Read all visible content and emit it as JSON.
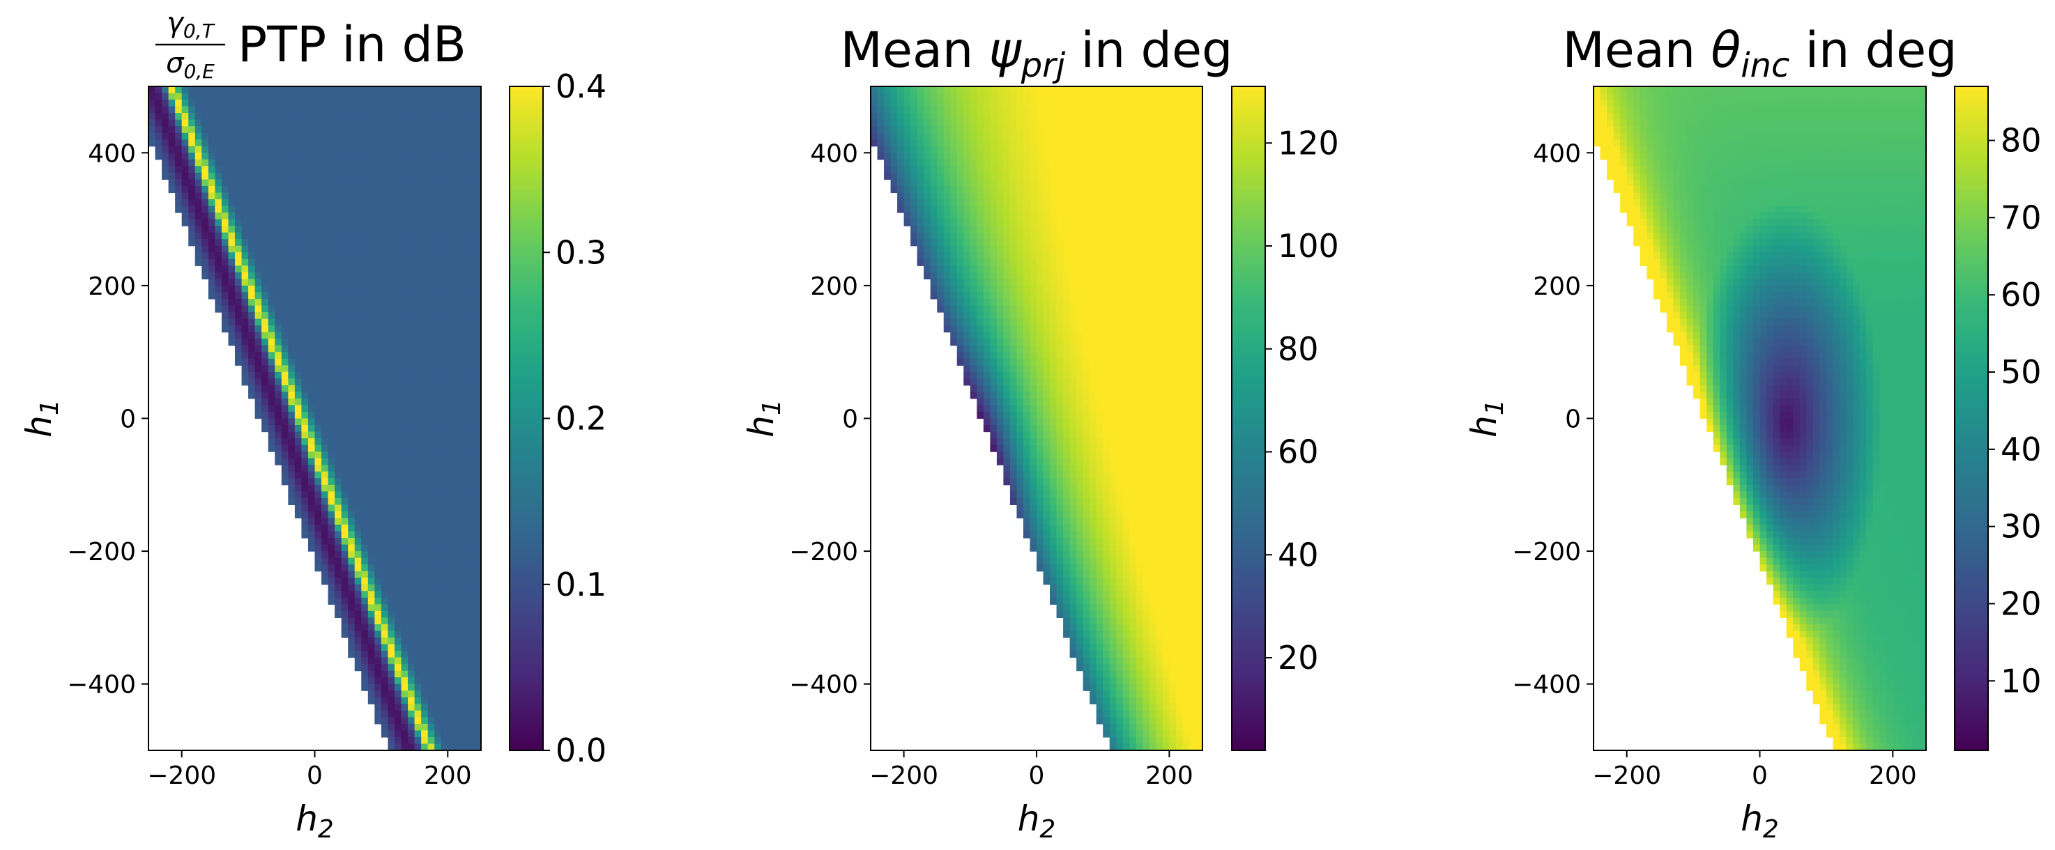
{
  "chart_data": [
    {
      "type": "heatmap",
      "title": {
        "fraction_numerator": "γ",
        "numerator_sub": "0,T",
        "fraction_denominator": "σ",
        "denominator_sub": "0,E",
        "text": "PTP in dB"
      },
      "xlabel": {
        "symbol": "h",
        "sub": "2"
      },
      "ylabel": {
        "symbol": "h",
        "sub": "1"
      },
      "xlim": [
        -250,
        250
      ],
      "ylim": [
        -500,
        500
      ],
      "xticks": [
        -200,
        0,
        200
      ],
      "xtick_labels": [
        "−200",
        "0",
        "200"
      ],
      "yticks": [
        -400,
        -200,
        0,
        200,
        400
      ],
      "ytick_labels": [
        "−400",
        "−200",
        "0",
        "200",
        "400"
      ],
      "colorbar": {
        "min": 0.0,
        "max": 0.4,
        "ticks": [
          0.0,
          0.1,
          0.2,
          0.3,
          0.4
        ],
        "tick_labels": [
          "0.0",
          "0.1",
          "0.2",
          "0.3",
          "0.4"
        ]
      },
      "colormap": "viridis",
      "grid": [
        50,
        100
      ],
      "description_values": {
        "background": 0.12,
        "dark_band": 0.02,
        "bright_band": 0.42
      }
    },
    {
      "type": "heatmap",
      "title": {
        "prefix": "Mean ",
        "symbol": "ψ",
        "sub": "prj",
        "suffix": " in deg"
      },
      "xlabel": {
        "symbol": "h",
        "sub": "2"
      },
      "ylabel": {
        "symbol": "h",
        "sub": "1"
      },
      "xlim": [
        -250,
        250
      ],
      "ylim": [
        -500,
        500
      ],
      "xticks": [
        -200,
        0,
        200
      ],
      "xtick_labels": [
        "−200",
        "0",
        "200"
      ],
      "yticks": [
        -400,
        -200,
        0,
        200,
        400
      ],
      "ytick_labels": [
        "−400",
        "−200",
        "0",
        "200",
        "400"
      ],
      "colorbar": {
        "min": 2,
        "max": 131,
        "ticks": [
          20,
          40,
          60,
          80,
          100,
          120
        ],
        "tick_labels": [
          "20",
          "40",
          "60",
          "80",
          "100",
          "120"
        ]
      },
      "colormap": "viridis",
      "grid": [
        50,
        100
      ]
    },
    {
      "type": "heatmap",
      "title": {
        "prefix": "Mean ",
        "symbol": "θ",
        "sub": "inc",
        "suffix": " in deg"
      },
      "xlabel": {
        "symbol": "h",
        "sub": "2"
      },
      "ylabel": {
        "symbol": "h",
        "sub": "1"
      },
      "xlim": [
        -250,
        250
      ],
      "ylim": [
        -500,
        500
      ],
      "xticks": [
        -200,
        0,
        200
      ],
      "xtick_labels": [
        "−200",
        "0",
        "200"
      ],
      "yticks": [
        -400,
        -200,
        0,
        200,
        400
      ],
      "ytick_labels": [
        "−400",
        "−200",
        "0",
        "200",
        "400"
      ],
      "colorbar": {
        "min": 1,
        "max": 87,
        "ticks": [
          10,
          20,
          30,
          40,
          50,
          60,
          70,
          80
        ],
        "tick_labels": [
          "10",
          "20",
          "30",
          "40",
          "50",
          "60",
          "70",
          "80"
        ]
      },
      "colormap": "viridis",
      "grid": [
        50,
        100
      ],
      "minimum_location": {
        "h2": 40,
        "h1": -10
      }
    }
  ]
}
